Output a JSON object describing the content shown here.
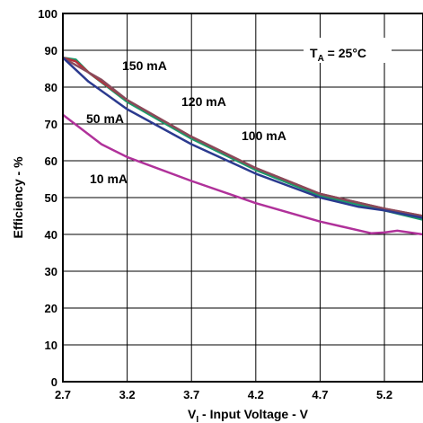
{
  "chart_data": {
    "type": "line",
    "title": "",
    "xlabel": "Input Voltage - V",
    "xlabel_prefix": "V",
    "xlabel_subscript": "I",
    "ylabel": "Efficiency - %",
    "xlim": [
      2.7,
      5.5
    ],
    "ylim": [
      0,
      100
    ],
    "x_ticks": [
      "2.7",
      "3.2",
      "3.7",
      "4.2",
      "4.7",
      "5.2"
    ],
    "y_ticks": [
      "0",
      "10",
      "20",
      "30",
      "40",
      "50",
      "60",
      "70",
      "80",
      "90",
      "100"
    ],
    "grid": true,
    "annotation": {
      "text_prefix": "T",
      "text_subscript": "A",
      "text_suffix": " = 25°C"
    },
    "series": [
      {
        "name": "150 mA",
        "color": "#1a9a6a",
        "x": [
          2.7,
          2.8,
          2.9,
          3.2,
          3.7,
          4.2,
          4.7,
          5.2,
          5.5
        ],
        "y": [
          88,
          87.5,
          84,
          76,
          66,
          57.5,
          50.5,
          46.5,
          44
        ]
      },
      {
        "name": "120 mA",
        "color": "#b82f3a",
        "x": [
          2.7,
          2.8,
          2.9,
          3.2,
          3.7,
          4.2,
          4.7,
          5.2,
          5.5
        ],
        "y": [
          88,
          87,
          84,
          76.5,
          66.5,
          58,
          51,
          47,
          45
        ]
      },
      {
        "name": "100 mA",
        "color": "#8a4a5a",
        "x": [
          2.7,
          2.8,
          3.0,
          3.2,
          3.7,
          4.2,
          4.7,
          5.2,
          5.5
        ],
        "y": [
          88,
          86,
          82,
          76.5,
          66.5,
          58,
          51,
          47,
          45
        ]
      },
      {
        "name": "50 mA",
        "color": "#2b3a8f",
        "x": [
          2.7,
          2.9,
          3.2,
          3.7,
          4.2,
          4.7,
          5.0,
          5.2,
          5.5
        ],
        "y": [
          88,
          81.5,
          74,
          64.5,
          56.5,
          50,
          47.5,
          46.5,
          44.5
        ]
      },
      {
        "name": "10 mA",
        "color": "#b0319a",
        "x": [
          2.7,
          3.0,
          3.2,
          3.7,
          4.2,
          4.7,
          5.1,
          5.2,
          5.3,
          5.5
        ],
        "y": [
          72.5,
          64.5,
          61,
          54.5,
          48.5,
          43.5,
          40.3,
          40.5,
          41,
          40
        ]
      }
    ],
    "series_labels": [
      {
        "text": "150 mA"
      },
      {
        "text": "120 mA"
      },
      {
        "text": "100 mA"
      },
      {
        "text": "50 mA"
      },
      {
        "text": "10 mA"
      }
    ]
  }
}
